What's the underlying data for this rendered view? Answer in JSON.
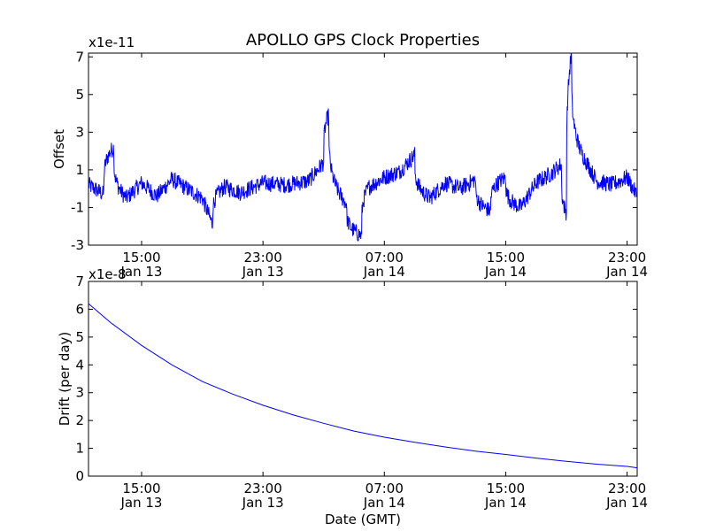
{
  "title": "APOLLO GPS Clock Properties",
  "xlabel": "Date (GMT)",
  "line_color": "#0000ff",
  "chart_data": [
    {
      "type": "line",
      "ylabel": "Offset",
      "scale_label": "x1e-11",
      "xlim": [
        "Jan 13 11:30",
        "Jan 14 23:40"
      ],
      "ylim": [
        -3,
        7.2
      ],
      "yticks": [
        "-3",
        "-1",
        "1",
        "3",
        "5",
        "7"
      ],
      "xticks": [
        {
          "time": "15:00",
          "date": "Jan 13"
        },
        {
          "time": "23:00",
          "date": "Jan 13"
        },
        {
          "time": "07:00",
          "date": "Jan 14"
        },
        {
          "time": "15:00",
          "date": "Jan 14"
        },
        {
          "time": "23:00",
          "date": "Jan 14"
        }
      ],
      "series": [
        {
          "x": [
            "Jan 13 11:30",
            "Jan 13 12:30",
            "Jan 13 13:10",
            "Jan 13 14:00",
            "Jan 13 15:00",
            "Jan 13 16:00",
            "Jan 13 17:00",
            "Jan 13 18:00",
            "Jan 13 19:00",
            "Jan 13 19:40",
            "Jan 13 20:30",
            "Jan 13 21:30",
            "Jan 13 23:00",
            "Jan 14 00:30",
            "Jan 14 02:00",
            "Jan 14 03:00",
            "Jan 14 03:20",
            "Jan 14 04:30",
            "Jan 14 05:30",
            "Jan 14 06:00",
            "Jan 14 07:00",
            "Jan 14 08:00",
            "Jan 14 09:00",
            "Jan 14 10:00",
            "Jan 14 11:00",
            "Jan 14 12:00",
            "Jan 14 13:00",
            "Jan 14 14:00",
            "Jan 14 15:00",
            "Jan 14 16:00",
            "Jan 14 17:00",
            "Jan 14 18:00",
            "Jan 14 18:40",
            "Jan 14 19:00",
            "Jan 14 19:20",
            "Jan 14 20:00",
            "Jan 14 21:00",
            "Jan 14 22:00",
            "Jan 14 23:00",
            "Jan 14 23:40"
          ],
          "y": [
            0.2,
            -0.3,
            2.2,
            -0.5,
            0.3,
            -0.4,
            0.5,
            0.0,
            -0.5,
            -1.9,
            0.1,
            -0.2,
            0.3,
            0.2,
            0.4,
            1.4,
            3.9,
            -0.8,
            -2.5,
            0.1,
            0.6,
            0.9,
            1.8,
            -0.5,
            0.3,
            0.0,
            0.5,
            -1.2,
            0.6,
            -1.0,
            0.3,
            0.8,
            1.3,
            -1.3,
            7.2,
            1.9,
            0.4,
            0.2,
            0.6,
            -0.4
          ]
        }
      ]
    },
    {
      "type": "line",
      "ylabel": "Drift (per day)",
      "scale_label": "x1e-8",
      "xlim": [
        "Jan 13 11:30",
        "Jan 14 23:40"
      ],
      "ylim": [
        0,
        7
      ],
      "yticks": [
        "0",
        "1",
        "2",
        "3",
        "4",
        "5",
        "6",
        "7"
      ],
      "xticks": [
        {
          "time": "15:00",
          "date": "Jan 13"
        },
        {
          "time": "23:00",
          "date": "Jan 13"
        },
        {
          "time": "07:00",
          "date": "Jan 14"
        },
        {
          "time": "15:00",
          "date": "Jan 14"
        },
        {
          "time": "23:00",
          "date": "Jan 14"
        }
      ],
      "series": [
        {
          "x": [
            "Jan 13 11:30",
            "Jan 13 13:00",
            "Jan 13 15:00",
            "Jan 13 17:00",
            "Jan 13 19:00",
            "Jan 13 21:00",
            "Jan 13 23:00",
            "Jan 14 01:00",
            "Jan 14 03:00",
            "Jan 14 05:00",
            "Jan 14 07:00",
            "Jan 14 09:00",
            "Jan 14 11:00",
            "Jan 14 13:00",
            "Jan 14 15:00",
            "Jan 14 17:00",
            "Jan 14 19:00",
            "Jan 14 21:00",
            "Jan 14 23:00",
            "Jan 14 23:40"
          ],
          "y": [
            6.2,
            5.5,
            4.7,
            4.0,
            3.4,
            2.95,
            2.55,
            2.2,
            1.9,
            1.62,
            1.4,
            1.22,
            1.05,
            0.9,
            0.78,
            0.65,
            0.53,
            0.43,
            0.35,
            0.3
          ]
        }
      ]
    }
  ]
}
